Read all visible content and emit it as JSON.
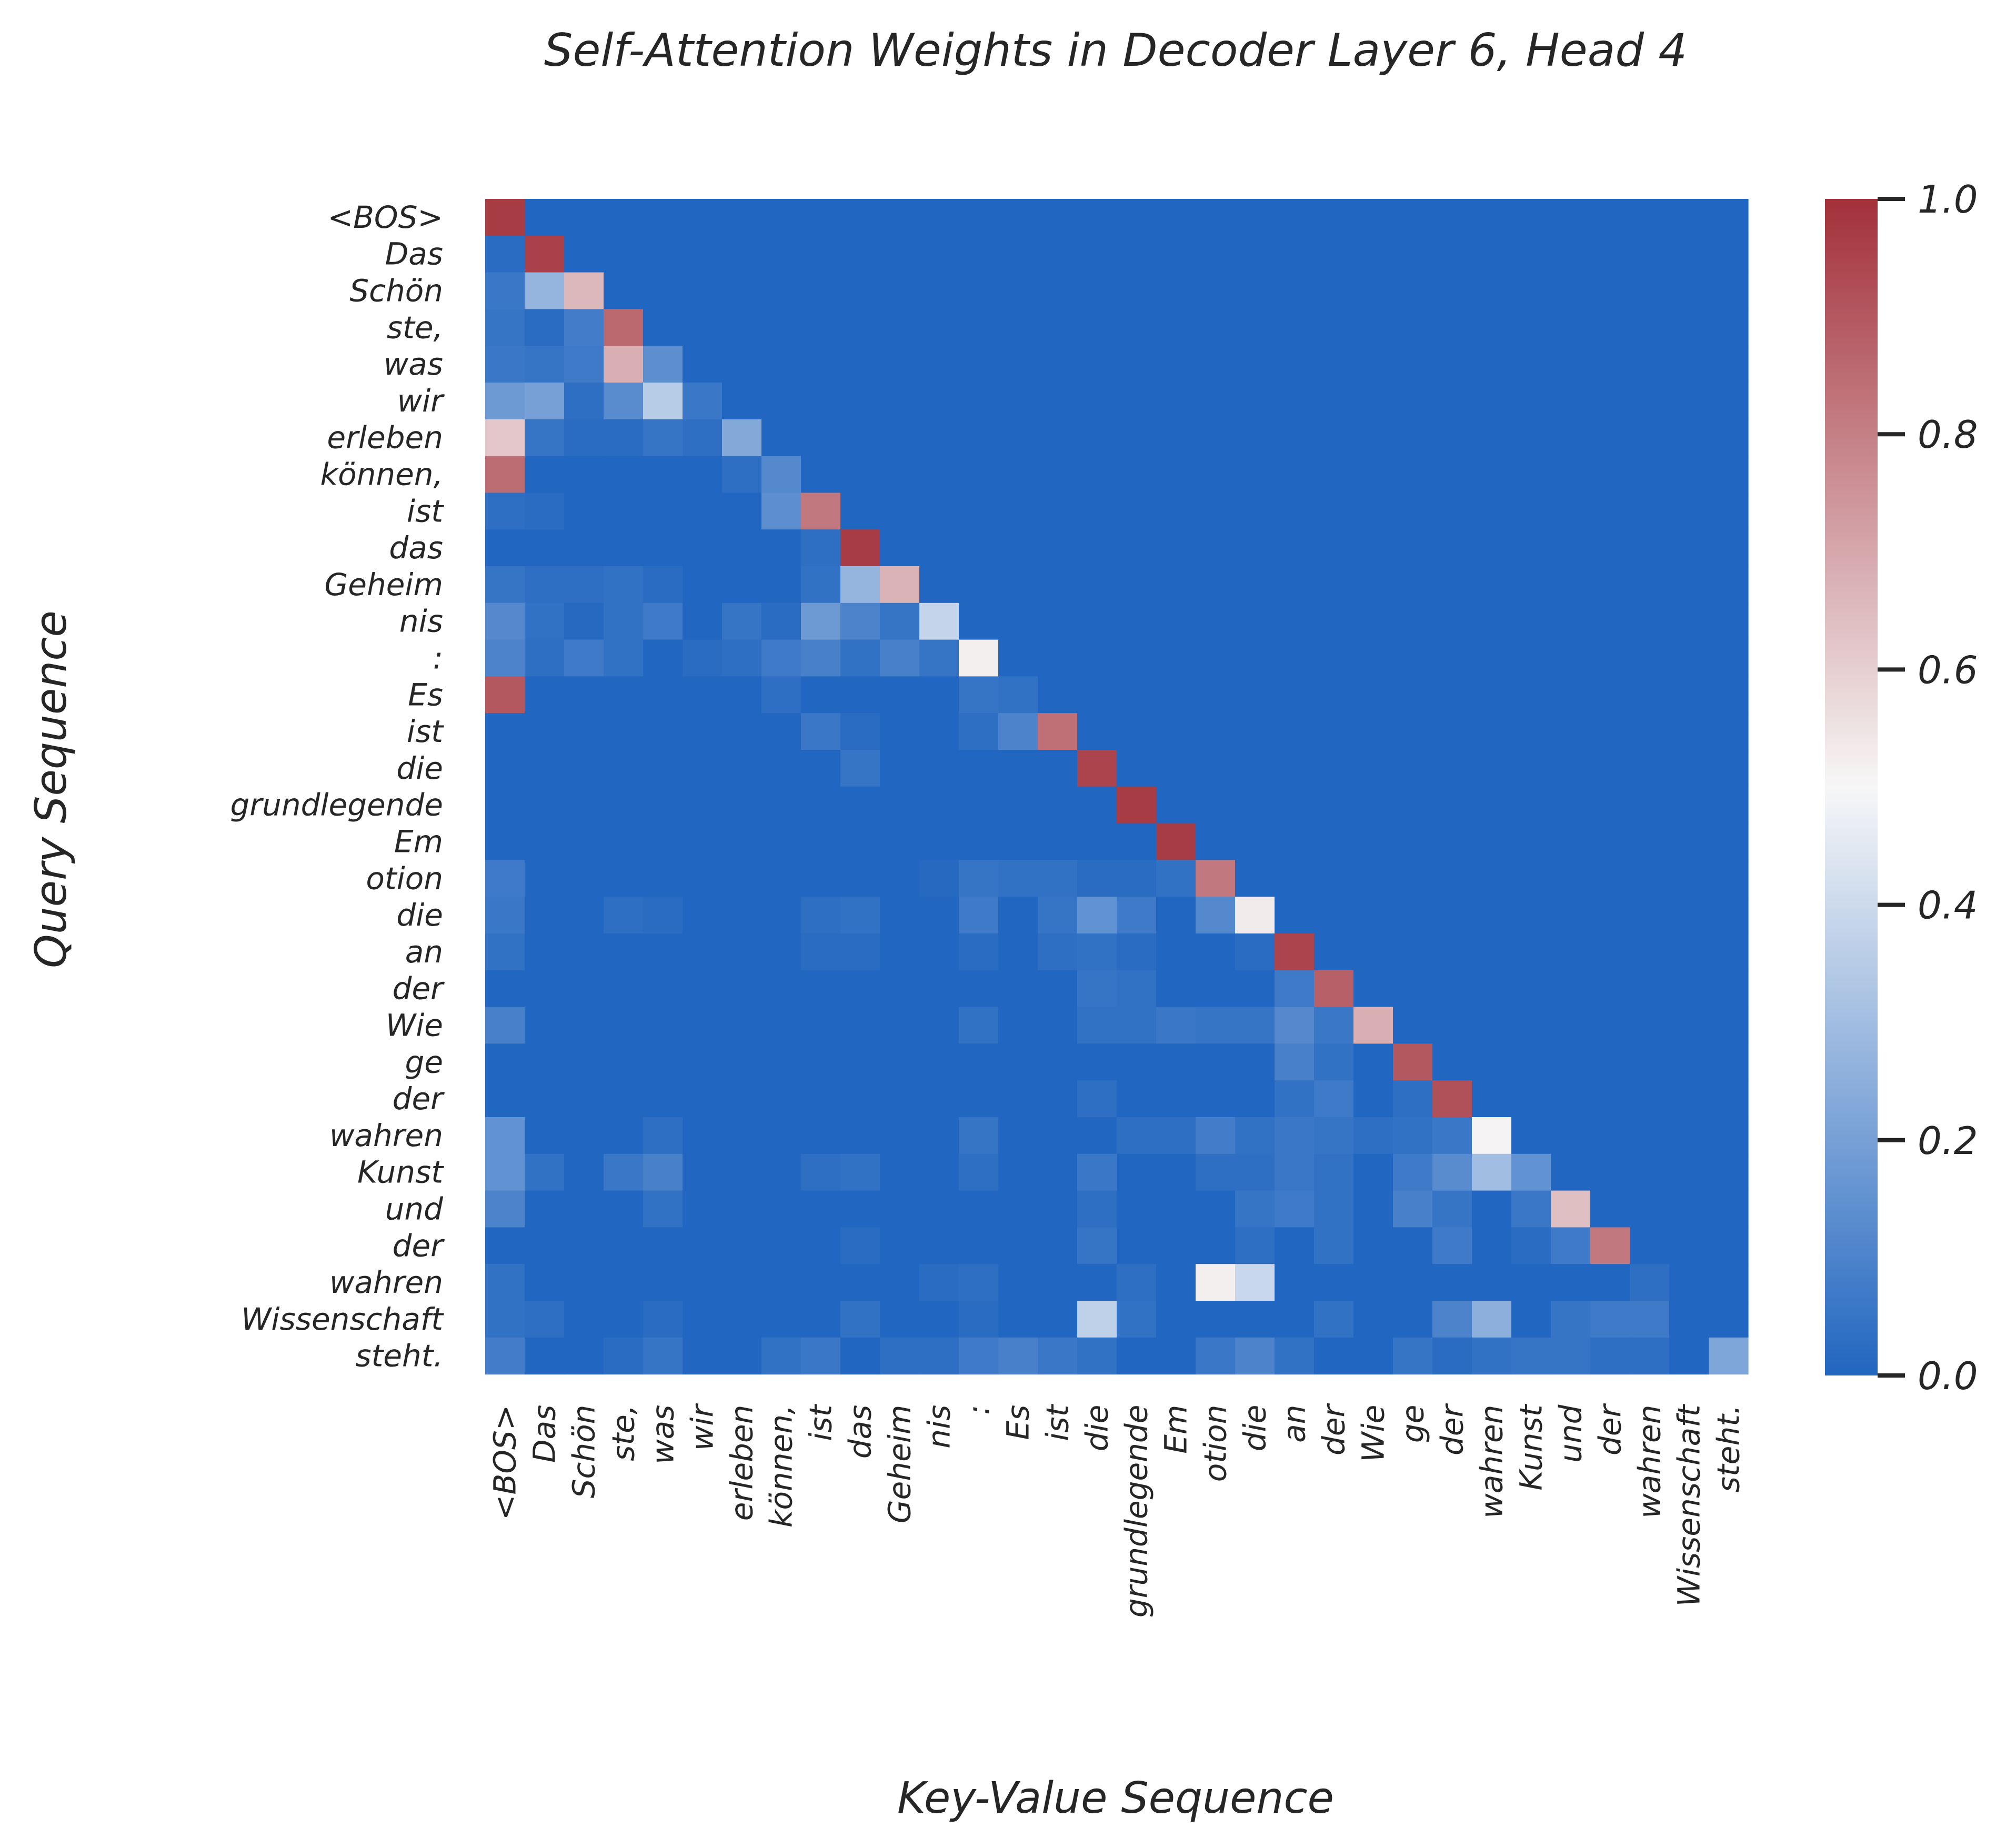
{
  "chart_data": {
    "type": "heatmap",
    "title": "Self-Attention Weights in Decoder Layer 6, Head 4",
    "xlabel": "Key-Value Sequence",
    "ylabel": "Query Sequence",
    "tokens": [
      "<BOS>",
      "Das",
      "Schön",
      "ste,",
      "was",
      "wir",
      "erleben",
      "können,",
      "ist",
      "das",
      "Geheim",
      "nis",
      ":",
      "Es",
      "ist",
      "die",
      "grundlegende",
      "Em",
      "otion",
      "die",
      "an",
      "der",
      "Wie",
      "ge",
      "der",
      "wahren",
      "Kunst",
      "und",
      "der",
      "wahren",
      "Wissenschaft",
      "steht."
    ],
    "colorbar": {
      "min": 0.0,
      "max": 1.0,
      "ticks": [
        "0.0",
        "0.2",
        "0.4",
        "0.6",
        "0.8",
        "1.0"
      ],
      "colormap": [
        "#2166c0",
        "#f7f7f7",
        "#a3303a"
      ]
    },
    "sparse_values": [
      [
        0,
        0,
        0.97
      ],
      [
        1,
        0,
        0.02
      ],
      [
        1,
        1,
        0.96
      ],
      [
        2,
        0,
        0.06
      ],
      [
        2,
        1,
        0.27
      ],
      [
        2,
        2,
        0.66
      ],
      [
        3,
        0,
        0.05
      ],
      [
        3,
        1,
        0.02
      ],
      [
        3,
        2,
        0.08
      ],
      [
        3,
        3,
        0.86
      ],
      [
        4,
        0,
        0.06
      ],
      [
        4,
        1,
        0.05
      ],
      [
        4,
        2,
        0.07
      ],
      [
        4,
        3,
        0.68
      ],
      [
        4,
        4,
        0.14
      ],
      [
        5,
        0,
        0.18
      ],
      [
        5,
        1,
        0.2
      ],
      [
        5,
        2,
        0.03
      ],
      [
        5,
        3,
        0.13
      ],
      [
        5,
        4,
        0.35
      ],
      [
        5,
        5,
        0.06
      ],
      [
        6,
        0,
        0.62
      ],
      [
        6,
        1,
        0.05
      ],
      [
        6,
        2,
        0.02
      ],
      [
        6,
        3,
        0.02
      ],
      [
        6,
        4,
        0.05
      ],
      [
        6,
        5,
        0.03
      ],
      [
        6,
        6,
        0.23
      ],
      [
        7,
        0,
        0.85
      ],
      [
        7,
        6,
        0.03
      ],
      [
        7,
        7,
        0.12
      ],
      [
        8,
        0,
        0.03
      ],
      [
        8,
        1,
        0.02
      ],
      [
        8,
        7,
        0.14
      ],
      [
        8,
        8,
        0.82
      ],
      [
        9,
        8,
        0.03
      ],
      [
        9,
        9,
        0.97
      ],
      [
        10,
        0,
        0.05
      ],
      [
        10,
        1,
        0.03
      ],
      [
        10,
        2,
        0.03
      ],
      [
        10,
        3,
        0.04
      ],
      [
        10,
        4,
        0.02
      ],
      [
        10,
        8,
        0.04
      ],
      [
        10,
        9,
        0.27
      ],
      [
        10,
        10,
        0.67
      ],
      [
        11,
        0,
        0.12
      ],
      [
        11,
        1,
        0.04
      ],
      [
        11,
        2,
        0.01
      ],
      [
        11,
        3,
        0.04
      ],
      [
        11,
        4,
        0.07
      ],
      [
        11,
        6,
        0.05
      ],
      [
        11,
        7,
        0.02
      ],
      [
        11,
        8,
        0.18
      ],
      [
        11,
        9,
        0.1
      ],
      [
        11,
        10,
        0.05
      ],
      [
        11,
        11,
        0.38
      ],
      [
        12,
        0,
        0.1
      ],
      [
        12,
        1,
        0.03
      ],
      [
        12,
        2,
        0.07
      ],
      [
        12,
        3,
        0.04
      ],
      [
        12,
        5,
        0.02
      ],
      [
        12,
        6,
        0.03
      ],
      [
        12,
        7,
        0.07
      ],
      [
        12,
        8,
        0.09
      ],
      [
        12,
        9,
        0.04
      ],
      [
        12,
        10,
        0.09
      ],
      [
        12,
        11,
        0.05
      ],
      [
        12,
        12,
        0.52
      ],
      [
        13,
        0,
        0.9
      ],
      [
        13,
        7,
        0.03
      ],
      [
        13,
        12,
        0.05
      ],
      [
        13,
        13,
        0.04
      ],
      [
        14,
        8,
        0.06
      ],
      [
        14,
        9,
        0.02
      ],
      [
        14,
        12,
        0.03
      ],
      [
        14,
        13,
        0.1
      ],
      [
        14,
        14,
        0.84
      ],
      [
        15,
        9,
        0.05
      ],
      [
        15,
        15,
        0.95
      ],
      [
        16,
        16,
        0.97
      ],
      [
        17,
        17,
        0.97
      ],
      [
        18,
        0,
        0.07
      ],
      [
        18,
        11,
        0.01
      ],
      [
        18,
        12,
        0.05
      ],
      [
        18,
        13,
        0.04
      ],
      [
        18,
        14,
        0.04
      ],
      [
        18,
        15,
        0.02
      ],
      [
        18,
        16,
        0.02
      ],
      [
        18,
        17,
        0.04
      ],
      [
        18,
        18,
        0.82
      ],
      [
        19,
        0,
        0.06
      ],
      [
        19,
        3,
        0.03
      ],
      [
        19,
        4,
        0.02
      ],
      [
        19,
        8,
        0.03
      ],
      [
        19,
        9,
        0.04
      ],
      [
        19,
        12,
        0.07
      ],
      [
        19,
        14,
        0.05
      ],
      [
        19,
        15,
        0.15
      ],
      [
        19,
        16,
        0.07
      ],
      [
        19,
        18,
        0.12
      ],
      [
        19,
        19,
        0.53
      ],
      [
        20,
        0,
        0.04
      ],
      [
        20,
        8,
        0.02
      ],
      [
        20,
        9,
        0.02
      ],
      [
        20,
        12,
        0.02
      ],
      [
        20,
        14,
        0.03
      ],
      [
        20,
        15,
        0.04
      ],
      [
        20,
        16,
        0.02
      ],
      [
        20,
        19,
        0.02
      ],
      [
        20,
        20,
        0.95
      ],
      [
        21,
        15,
        0.05
      ],
      [
        21,
        16,
        0.04
      ],
      [
        21,
        20,
        0.07
      ],
      [
        21,
        21,
        0.88
      ],
      [
        22,
        0,
        0.09
      ],
      [
        22,
        12,
        0.04
      ],
      [
        22,
        15,
        0.04
      ],
      [
        22,
        16,
        0.04
      ],
      [
        22,
        17,
        0.06
      ],
      [
        22,
        18,
        0.05
      ],
      [
        22,
        19,
        0.05
      ],
      [
        22,
        20,
        0.12
      ],
      [
        22,
        21,
        0.06
      ],
      [
        22,
        22,
        0.68
      ],
      [
        23,
        20,
        0.09
      ],
      [
        23,
        21,
        0.04
      ],
      [
        23,
        23,
        0.9
      ],
      [
        24,
        15,
        0.03
      ],
      [
        24,
        20,
        0.04
      ],
      [
        24,
        21,
        0.07
      ],
      [
        24,
        23,
        0.03
      ],
      [
        24,
        24,
        0.92
      ],
      [
        25,
        0,
        0.15
      ],
      [
        25,
        4,
        0.03
      ],
      [
        25,
        12,
        0.05
      ],
      [
        25,
        16,
        0.03
      ],
      [
        25,
        17,
        0.03
      ],
      [
        25,
        18,
        0.08
      ],
      [
        25,
        19,
        0.04
      ],
      [
        25,
        20,
        0.06
      ],
      [
        25,
        21,
        0.05
      ],
      [
        25,
        22,
        0.03
      ],
      [
        25,
        23,
        0.04
      ],
      [
        25,
        24,
        0.06
      ],
      [
        25,
        25,
        0.51
      ],
      [
        26,
        0,
        0.15
      ],
      [
        26,
        1,
        0.04
      ],
      [
        26,
        3,
        0.06
      ],
      [
        26,
        4,
        0.09
      ],
      [
        26,
        8,
        0.03
      ],
      [
        26,
        9,
        0.04
      ],
      [
        26,
        12,
        0.03
      ],
      [
        26,
        15,
        0.06
      ],
      [
        26,
        18,
        0.03
      ],
      [
        26,
        19,
        0.03
      ],
      [
        26,
        20,
        0.06
      ],
      [
        26,
        21,
        0.04
      ],
      [
        26,
        23,
        0.07
      ],
      [
        26,
        24,
        0.13
      ],
      [
        26,
        25,
        0.3
      ],
      [
        26,
        26,
        0.15
      ],
      [
        27,
        0,
        0.1
      ],
      [
        27,
        4,
        0.04
      ],
      [
        27,
        15,
        0.03
      ],
      [
        27,
        19,
        0.05
      ],
      [
        27,
        20,
        0.07
      ],
      [
        27,
        21,
        0.04
      ],
      [
        27,
        23,
        0.09
      ],
      [
        27,
        24,
        0.05
      ],
      [
        27,
        26,
        0.06
      ],
      [
        27,
        27,
        0.64
      ],
      [
        28,
        9,
        0.02
      ],
      [
        28,
        15,
        0.05
      ],
      [
        28,
        19,
        0.03
      ],
      [
        28,
        21,
        0.04
      ],
      [
        28,
        24,
        0.07
      ],
      [
        28,
        26,
        0.02
      ],
      [
        28,
        27,
        0.07
      ],
      [
        28,
        28,
        0.82
      ],
      [
        29,
        0,
        0.04
      ],
      [
        29,
        11,
        0.02
      ],
      [
        29,
        12,
        0.03
      ],
      [
        29,
        16,
        0.03
      ],
      [
        29,
        18,
        0.52
      ],
      [
        29,
        19,
        0.39
      ],
      [
        29,
        29,
        0.03
      ],
      [
        30,
        0,
        0.04
      ],
      [
        30,
        1,
        0.03
      ],
      [
        30,
        4,
        0.02
      ],
      [
        30,
        9,
        0.04
      ],
      [
        30,
        12,
        0.02
      ],
      [
        30,
        15,
        0.37
      ],
      [
        30,
        16,
        0.04
      ],
      [
        30,
        21,
        0.04
      ],
      [
        30,
        24,
        0.1
      ],
      [
        30,
        25,
        0.25
      ],
      [
        30,
        27,
        0.05
      ],
      [
        30,
        28,
        0.07
      ],
      [
        30,
        29,
        0.07
      ],
      [
        31,
        0,
        0.08
      ],
      [
        31,
        3,
        0.02
      ],
      [
        31,
        4,
        0.05
      ],
      [
        31,
        7,
        0.04
      ],
      [
        31,
        8,
        0.06
      ],
      [
        31,
        10,
        0.03
      ],
      [
        31,
        11,
        0.03
      ],
      [
        31,
        12,
        0.07
      ],
      [
        31,
        13,
        0.09
      ],
      [
        31,
        14,
        0.06
      ],
      [
        31,
        15,
        0.04
      ],
      [
        31,
        18,
        0.06
      ],
      [
        31,
        19,
        0.1
      ],
      [
        31,
        20,
        0.04
      ],
      [
        31,
        23,
        0.05
      ],
      [
        31,
        24,
        0.02
      ],
      [
        31,
        25,
        0.04
      ],
      [
        31,
        26,
        0.05
      ],
      [
        31,
        27,
        0.05
      ],
      [
        31,
        28,
        0.03
      ],
      [
        31,
        29,
        0.03
      ],
      [
        31,
        31,
        0.22
      ]
    ]
  }
}
